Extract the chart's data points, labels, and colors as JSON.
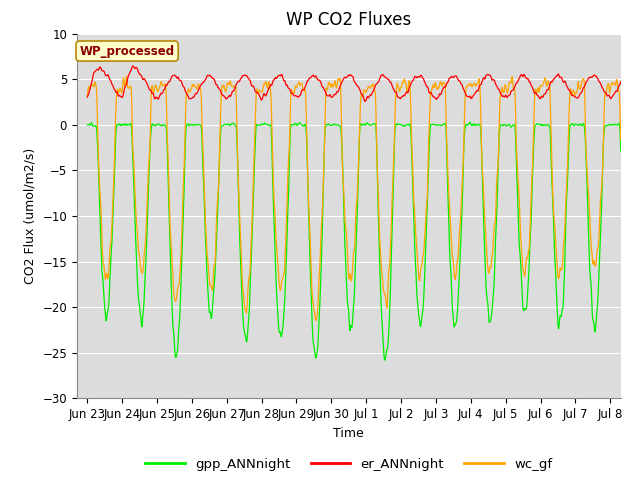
{
  "title": "WP CO2 Fluxes",
  "xlabel": "Time",
  "ylabel": "CO2 Flux (umol/m2/s)",
  "ylim": [
    -30,
    10
  ],
  "yticks": [
    -30,
    -25,
    -20,
    -15,
    -10,
    -5,
    0,
    5,
    10
  ],
  "xlim_days": [
    -0.3,
    15.3
  ],
  "tick_labels": [
    "Jun 23",
    "Jun 24",
    "Jun 25",
    "Jun 26",
    "Jun 27",
    "Jun 28",
    "Jun 29",
    "Jun 30",
    "Jul 1",
    "Jul 2",
    "Jul 3",
    "Jul 4",
    "Jul 5",
    "Jul 6",
    "Jul 7",
    "Jul 8"
  ],
  "tick_positions": [
    0,
    1,
    2,
    3,
    4,
    5,
    6,
    7,
    8,
    9,
    10,
    11,
    12,
    13,
    14,
    15
  ],
  "annotation_text": "WP_processed",
  "annotation_color": "#8B0000",
  "annotation_bg": "#FFFFCC",
  "annotation_border": "#B8860B",
  "color_gpp": "#00EE00",
  "color_er": "#FF0000",
  "color_wc": "#FFA500",
  "legend_labels": [
    "gpp_ANNnight",
    "er_ANNnight",
    "wc_gf"
  ],
  "bg_color": "#DCDCDC",
  "fig_bg": "#FFFFFF",
  "grid_color": "#FFFFFF",
  "n_days": 15.5,
  "points_per_day": 96
}
